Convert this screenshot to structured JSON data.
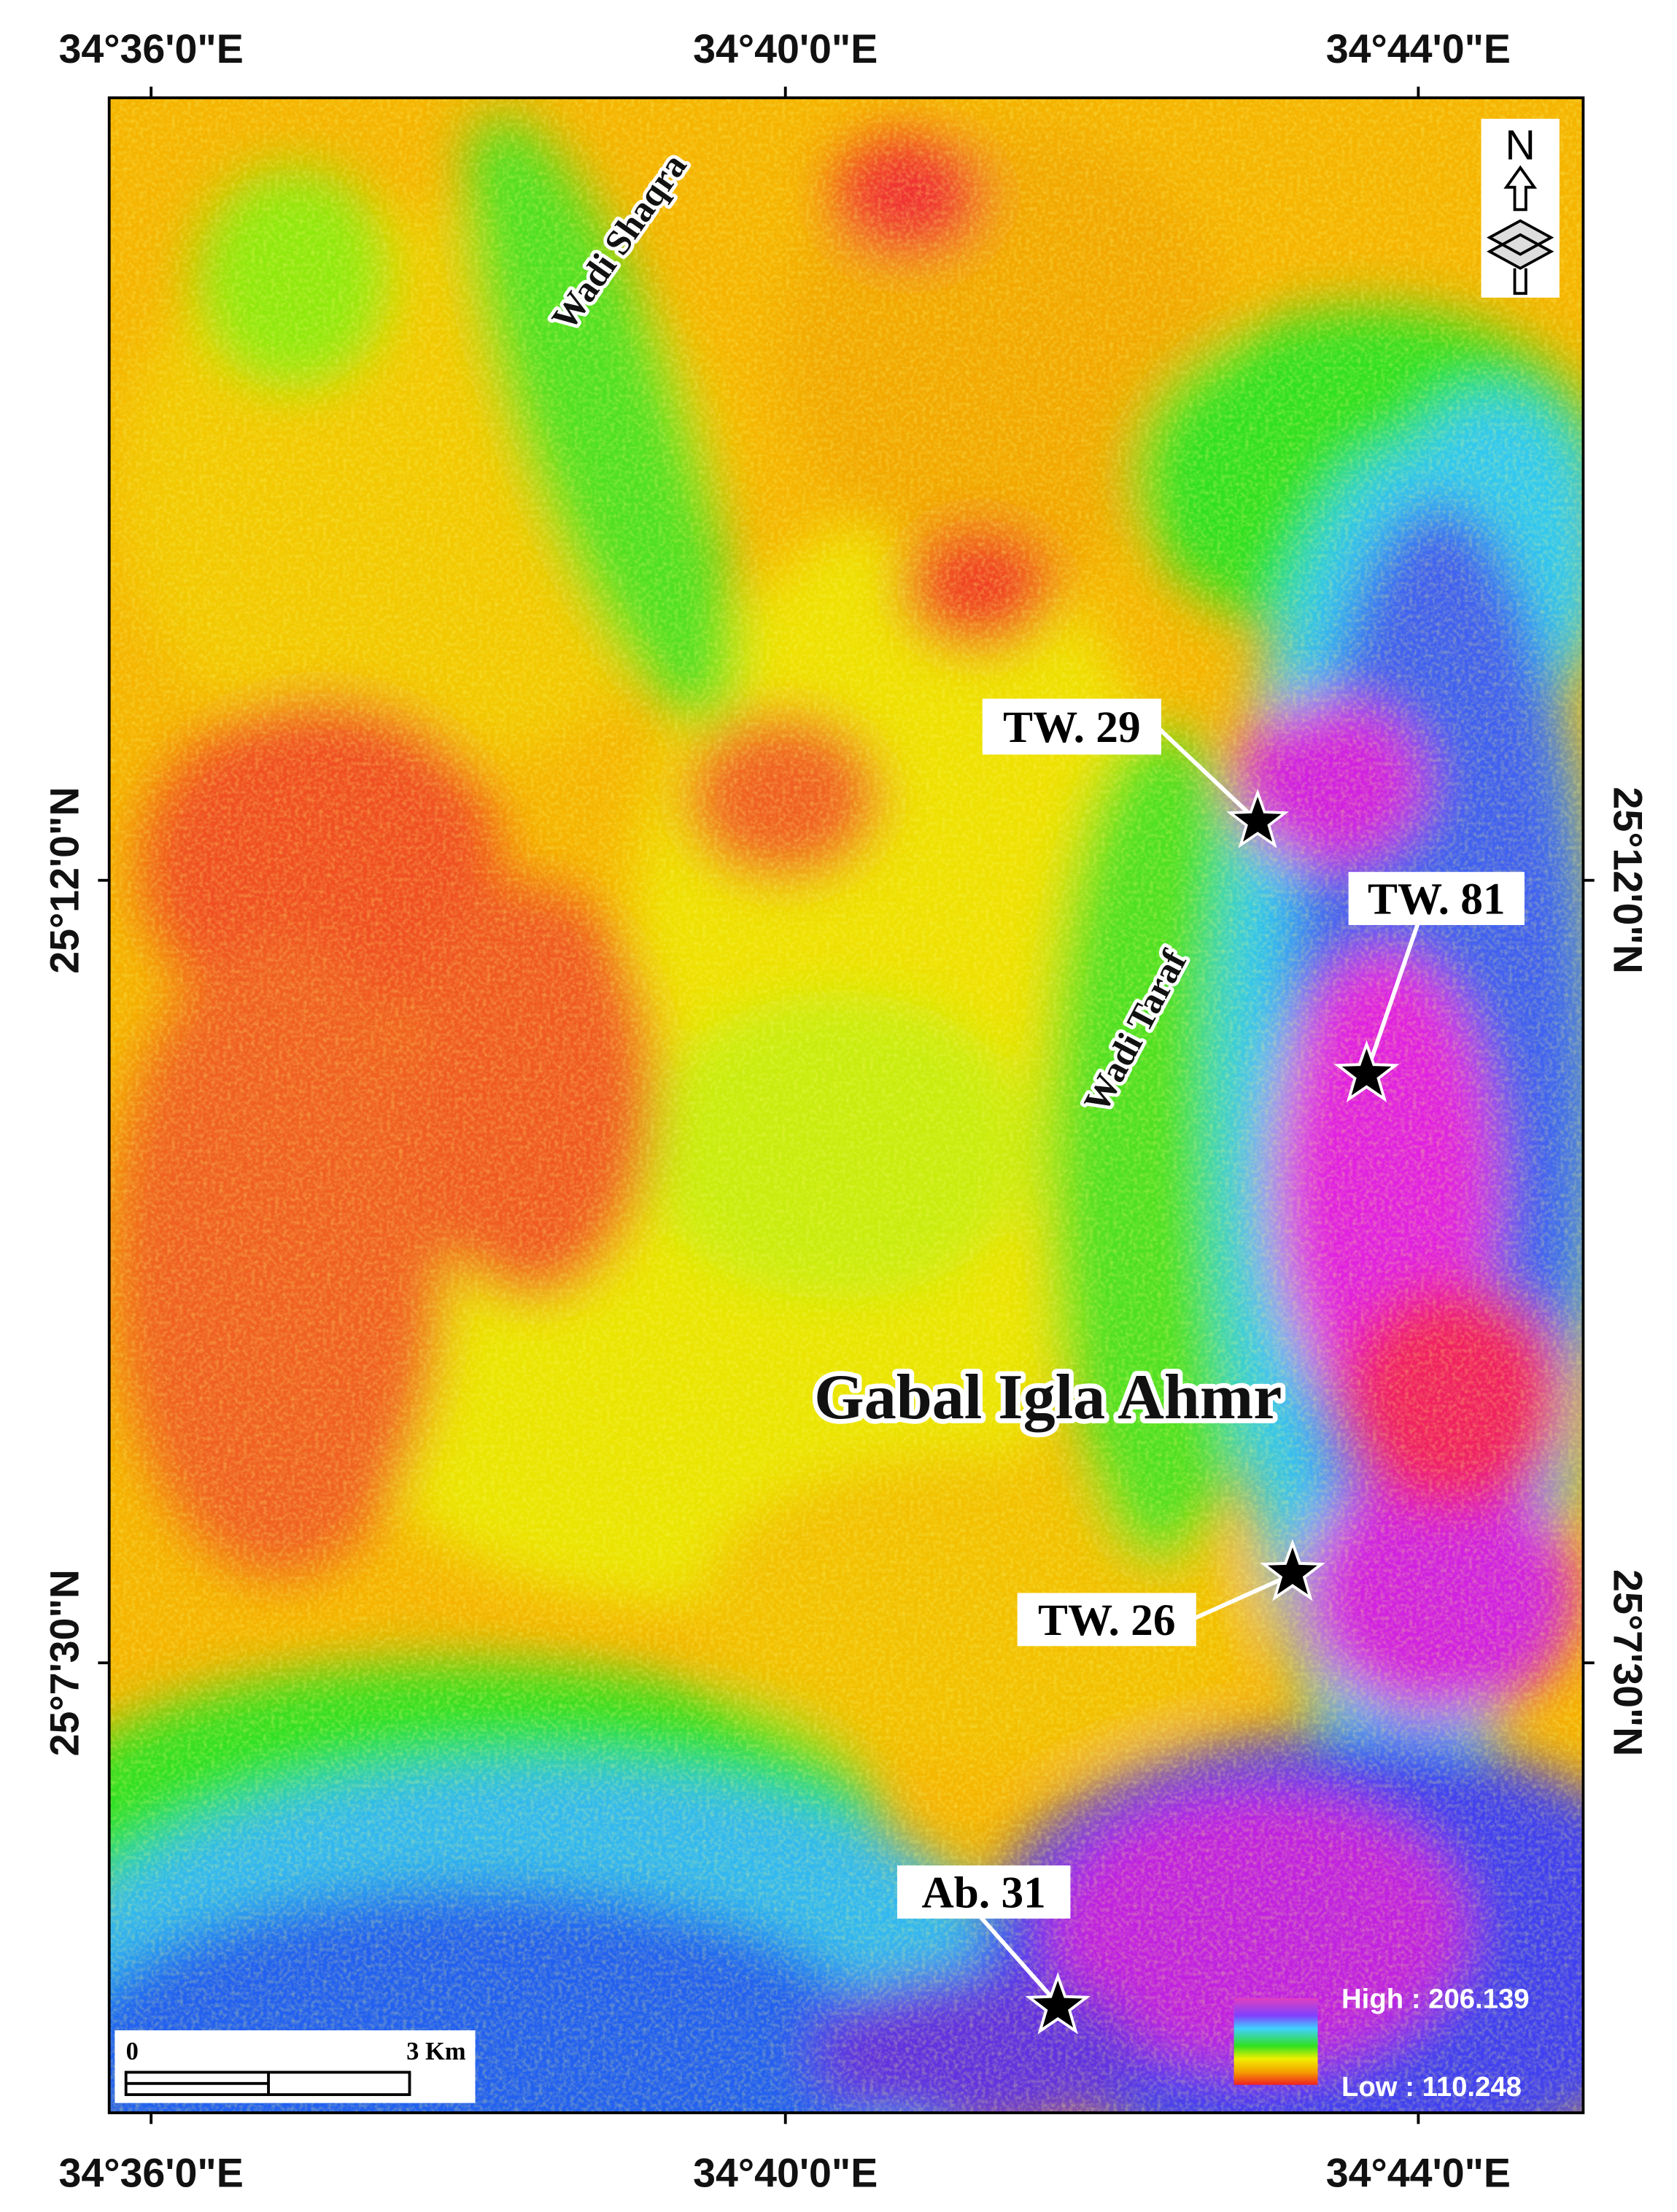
{
  "axes": {
    "top": [
      "34°36'0\"E",
      "34°40'0\"E",
      "34°44'0\"E"
    ],
    "bottom": [
      "34°36'0\"E",
      "34°40'0\"E",
      "34°44'0\"E"
    ],
    "left": [
      "25°12'0\"N",
      "25°7'30\"N"
    ],
    "right": [
      "25°12'0\"N",
      "25°7'30\"N"
    ]
  },
  "places": {
    "wadi_shaqra": "Wadi Shaqra",
    "wadi_taraf": "Wadi Taraf",
    "gabal": "Gabal Igla Ahmr"
  },
  "wells": [
    "TW. 29",
    "TW. 81",
    "TW. 26",
    "Ab. 31"
  ],
  "legend": {
    "high": "High : 206.139",
    "low": "Low : 110.248"
  },
  "scale_bar": {
    "start": "0",
    "end": "3 Km"
  },
  "north": "N"
}
